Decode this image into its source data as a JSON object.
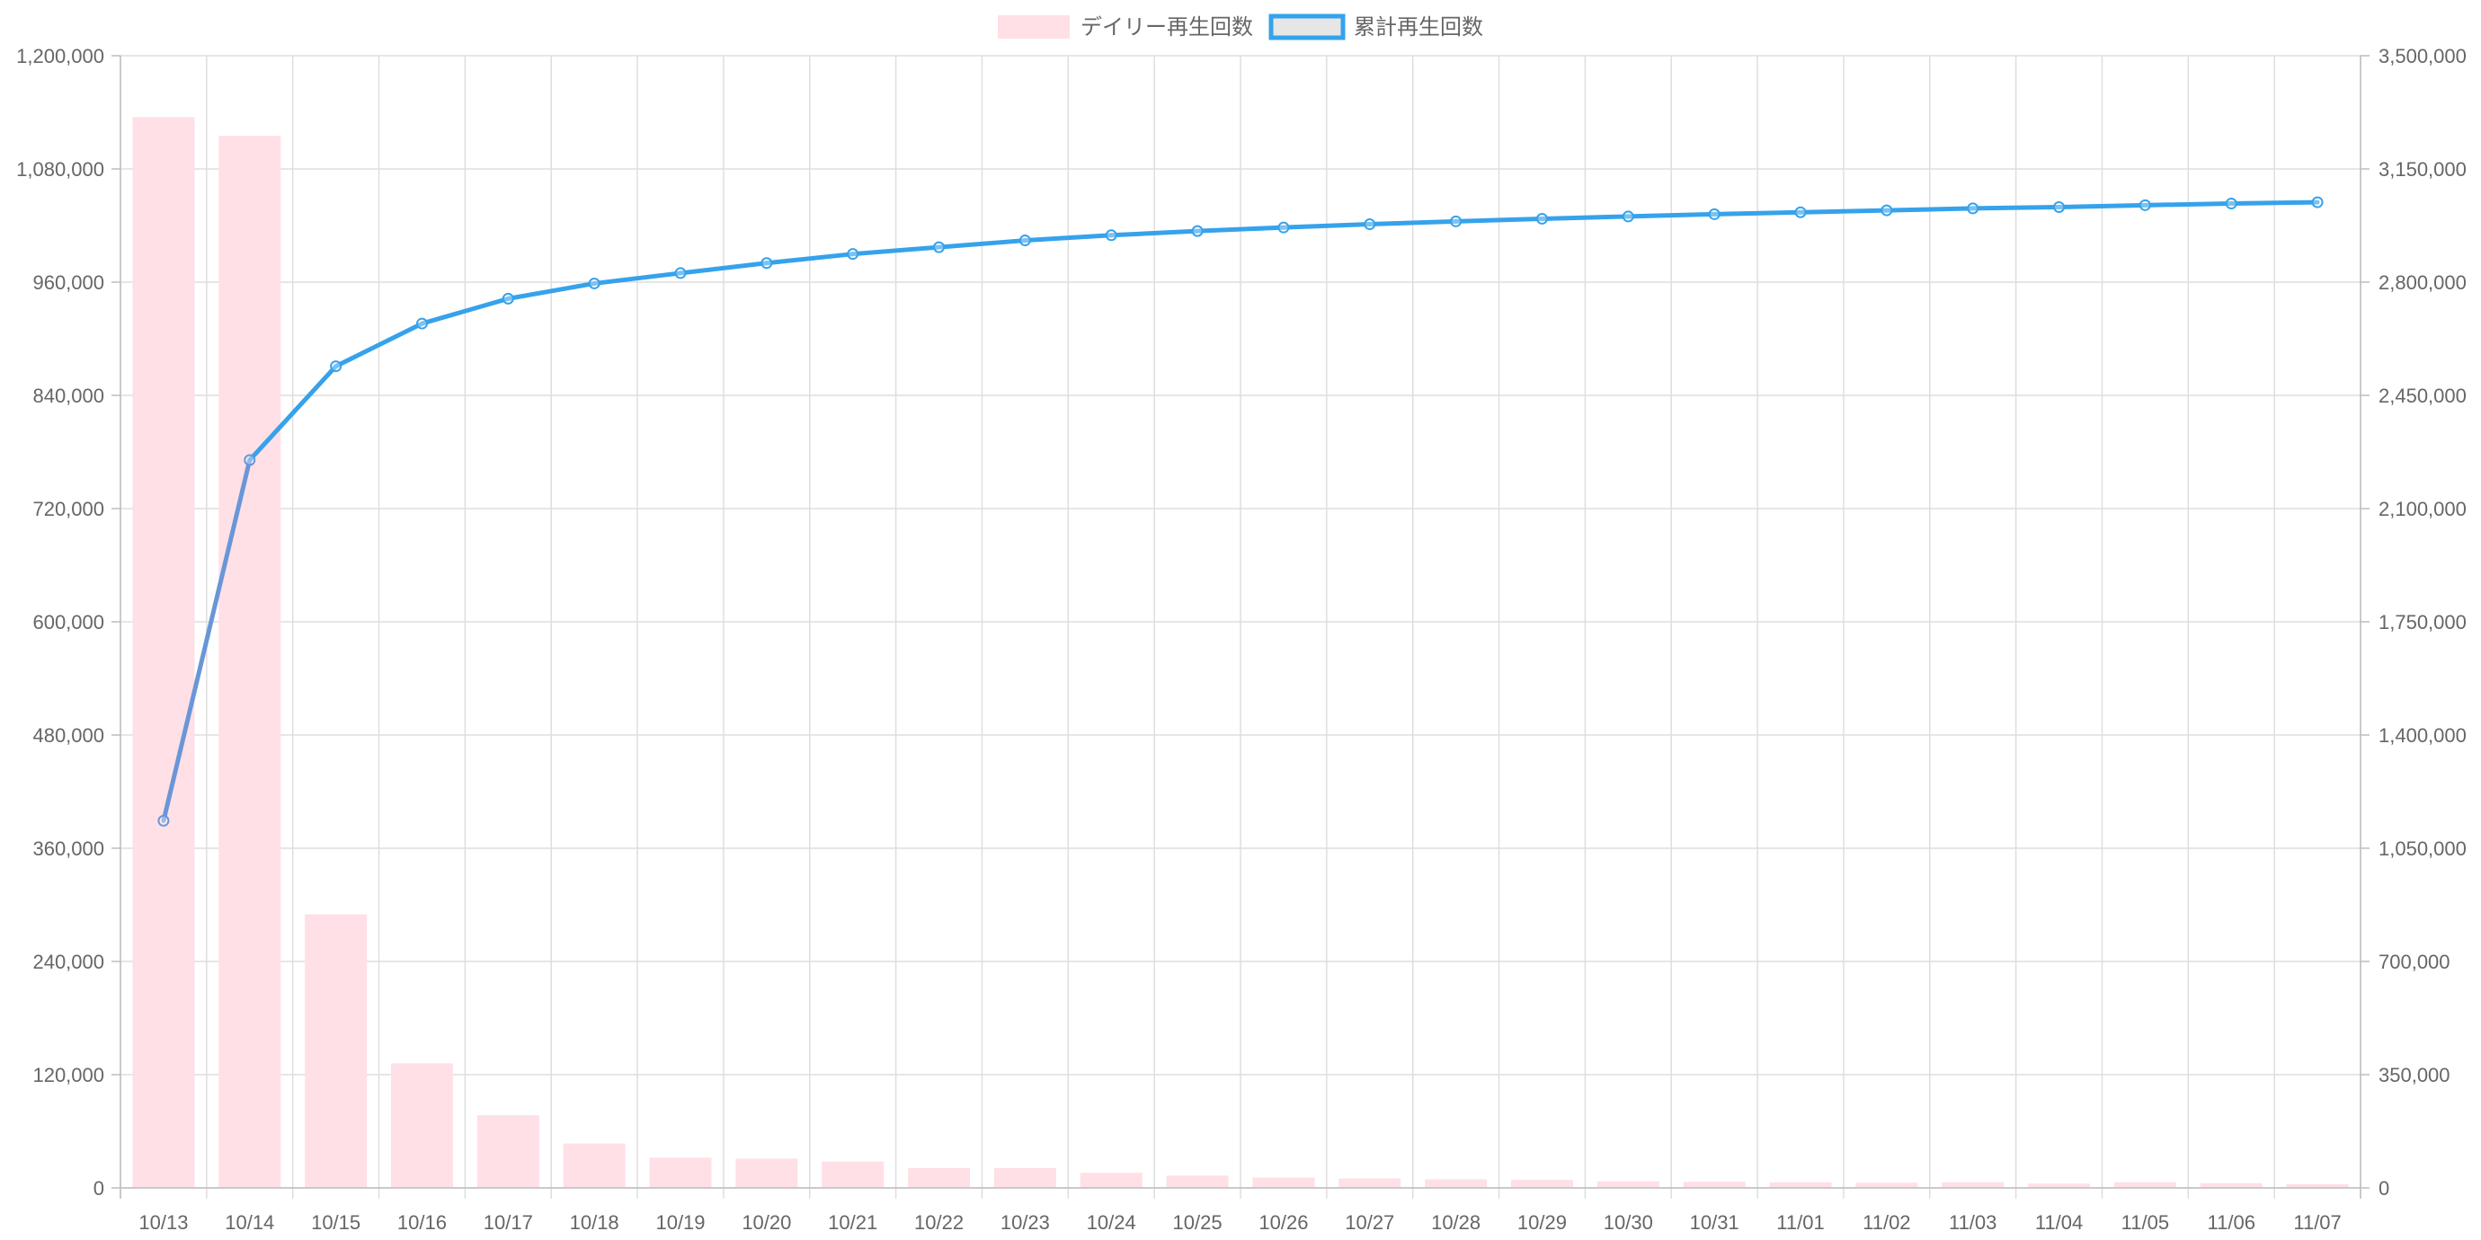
{
  "chart_data": {
    "type": "bar",
    "categories": [
      "10/13",
      "10/14",
      "10/15",
      "10/16",
      "10/17",
      "10/18",
      "10/19",
      "10/20",
      "10/21",
      "10/22",
      "10/23",
      "10/24",
      "10/25",
      "10/26",
      "10/27",
      "10/28",
      "10/29",
      "10/30",
      "10/31",
      "11/01",
      "11/02",
      "11/03",
      "11/04",
      "11/05",
      "11/06",
      "11/07"
    ],
    "series": [
      {
        "name": "デイリー再生回数",
        "type": "bar",
        "axis": "left",
        "color": "#FFE0E6",
        "values": [
          1135000,
          1115000,
          290000,
          132000,
          77000,
          47000,
          32000,
          31000,
          28000,
          21000,
          21000,
          16000,
          13000,
          11000,
          10000,
          9000,
          8500,
          7000,
          6500,
          6000,
          5500,
          6000,
          4500,
          6000,
          5000,
          4000
        ]
      },
      {
        "name": "累計再生回数",
        "type": "line",
        "axis": "right",
        "color": "#36A2EB",
        "values": [
          1135000,
          2250000,
          2540000,
          2672000,
          2749000,
          2796000,
          2828000,
          2859000,
          2887000,
          2908000,
          2929000,
          2945000,
          2958000,
          2969000,
          2979000,
          2988000,
          2996000,
          3003000,
          3010000,
          3016000,
          3022000,
          3028000,
          3032000,
          3038000,
          3043000,
          3047000
        ]
      }
    ],
    "y_left": {
      "lim": [
        0,
        1200000
      ],
      "ticks": [
        "0",
        "120,000",
        "240,000",
        "360,000",
        "480,000",
        "600,000",
        "720,000",
        "840,000",
        "960,000",
        "1,080,000",
        "1,200,000"
      ]
    },
    "y_right": {
      "lim": [
        0,
        3500000
      ],
      "ticks": [
        "0",
        "350,000",
        "700,000",
        "1,050,000",
        "1,400,000",
        "1,750,000",
        "2,100,000",
        "2,450,000",
        "2,800,000",
        "3,150,000",
        "3,500,000"
      ]
    },
    "grid": true,
    "legend_position": "top-center"
  },
  "colors": {
    "bar_fill": "#FFE0E6",
    "line": "#36A2EB",
    "line_first_segment": "#6A96D8",
    "legend_line_box_fill": "#E6E6E6",
    "grid": "#DEDEDE",
    "axis": "#BDBDBD",
    "text": "#666666"
  }
}
